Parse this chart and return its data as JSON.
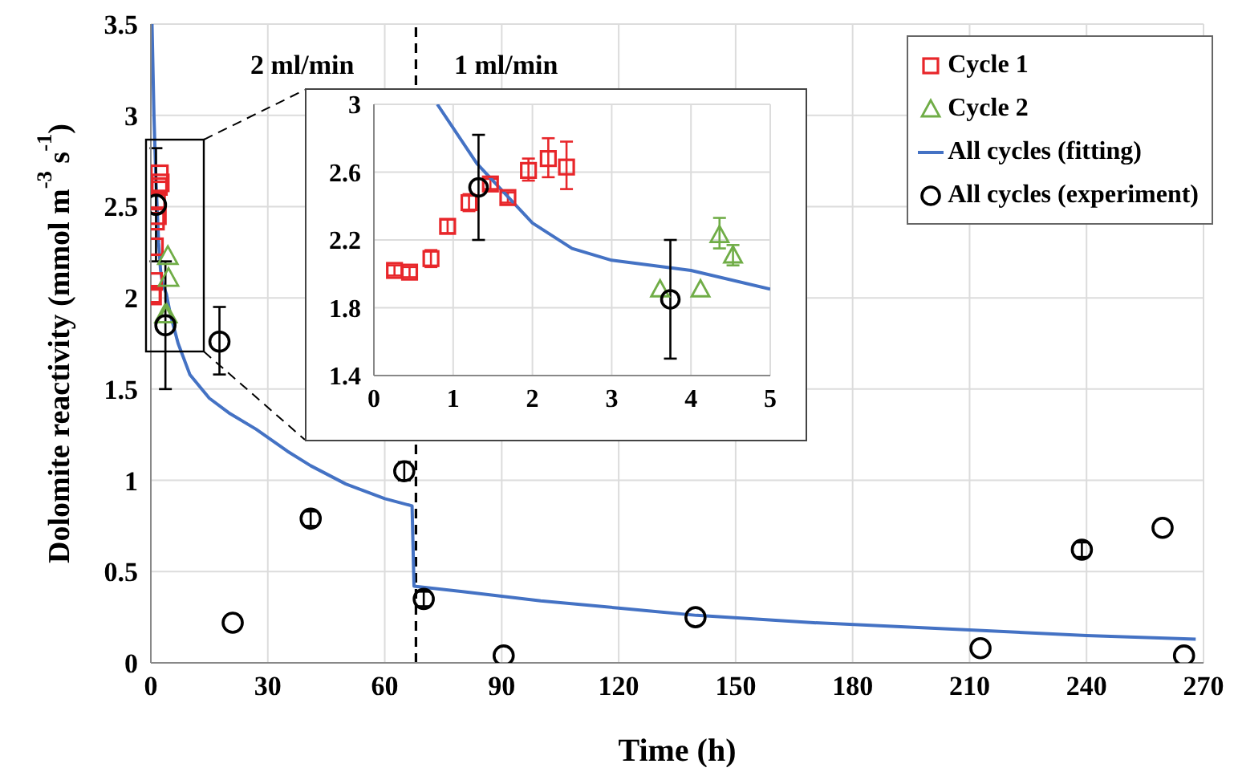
{
  "chart_data": [
    {
      "type": "scatter",
      "xlabel": "Time (h)",
      "ylabel": "Dolomite reactivity (mmol m$^{-3}$ s$^{-1}$)",
      "xlim": [
        0,
        270
      ],
      "ylim": [
        0,
        3.5
      ],
      "xticks": [
        0,
        30,
        60,
        90,
        120,
        150,
        180,
        210,
        240,
        270
      ],
      "yticks": [
        0,
        0.5,
        1,
        1.5,
        2,
        2.5,
        3,
        3.5
      ],
      "grid": true,
      "legend": "top right",
      "annotations": [
        "2 ml/min",
        "1 ml/min"
      ],
      "ref_lines": [
        {
          "axis": "x",
          "value": 68,
          "color": "#000000",
          "line_style": "dashed"
        }
      ],
      "series": [
        {
          "name": "Cycle 1",
          "marker": "square",
          "color": "#e8262a",
          "x": [
            0.26,
            0.45,
            0.72,
            0.93,
            1.2,
            1.47,
            1.69,
            1.95,
            2.2,
            2.43
          ],
          "values": [
            2.02,
            2.01,
            2.09,
            2.28,
            2.42,
            2.53,
            2.45,
            2.61,
            2.68,
            2.63
          ]
        },
        {
          "name": "Cycle 2",
          "marker": "triangle",
          "color": "#70ad47",
          "x": [
            3.61,
            4.12,
            4.36,
            4.53
          ],
          "values": [
            1.91,
            1.91,
            2.23,
            2.11
          ]
        },
        {
          "name": "All cycles (fitting)",
          "type": "line",
          "marker": "none",
          "line_style": "solid",
          "color": "#4472c4",
          "x": [
            0.3,
            0.8,
            1.3,
            1.7,
            2,
            2.5,
            3,
            4,
            5,
            7,
            10,
            15,
            20,
            27,
            35,
            41,
            50,
            60,
            67,
            67.5,
            80,
            100,
            120,
            140,
            170,
            210,
            240,
            268
          ],
          "values": [
            3.5,
            3.0,
            2.65,
            2.45,
            2.3,
            2.15,
            2.08,
            2.02,
            1.91,
            1.75,
            1.58,
            1.45,
            1.37,
            1.28,
            1.16,
            1.08,
            0.98,
            0.9,
            0.86,
            0.42,
            0.39,
            0.34,
            0.3,
            0.26,
            0.22,
            0.18,
            0.15,
            0.13
          ]
        },
        {
          "name": "All cycles (experiment)",
          "marker": "circle",
          "color": "#000000",
          "x": [
            1.32,
            3.74,
            17.6,
            21,
            41,
            65,
            70,
            90.5,
            139.7,
            212.8,
            238.8,
            259.5,
            265
          ],
          "values": [
            2.51,
            1.85,
            1.76,
            0.22,
            0.79,
            1.05,
            0.35,
            0.04,
            0.25,
            0.08,
            0.62,
            0.74,
            0.04
          ],
          "errors": [
            [
              2.2,
              2.82
            ],
            [
              1.5,
              2.2
            ],
            [
              1.58,
              1.95
            ],
            null,
            0.04,
            0.05,
            0.04,
            null,
            null,
            null,
            0.04,
            null,
            null
          ]
        }
      ]
    },
    {
      "type": "scatter",
      "xlim": [
        0,
        5
      ],
      "ylim": [
        1.4,
        3
      ],
      "xticks": [
        0,
        1,
        2,
        3,
        4,
        5
      ],
      "yticks": [
        1.4,
        1.8,
        2.2,
        2.6,
        3
      ],
      "grid": true,
      "series": [
        {
          "marker": "square",
          "color": "#e8262a",
          "x": [
            0.26,
            0.45,
            0.72,
            0.93,
            1.2,
            1.47,
            1.69,
            1.95,
            2.2,
            2.43
          ],
          "values": [
            2.02,
            2.01,
            2.09,
            2.28,
            2.42,
            2.53,
            2.45,
            2.61,
            2.68,
            2.63
          ],
          "errors": [
            0.03,
            0.03,
            0.05,
            0.04,
            0.05,
            0.03,
            0.03,
            [
              2.55,
              2.68
            ],
            [
              2.57,
              2.8
            ],
            [
              2.5,
              2.78
            ]
          ]
        },
        {
          "marker": "triangle",
          "color": "#70ad47",
          "x": [
            3.61,
            4.12,
            4.36,
            4.53
          ],
          "values": [
            1.91,
            1.91,
            2.23,
            2.11
          ],
          "errors": [
            null,
            null,
            [
              2.15,
              2.33
            ],
            0.06
          ]
        },
        {
          "type": "line",
          "marker": "none",
          "line_style": "solid",
          "color": "#4472c4",
          "x": [
            0.8,
            1.3,
            1.7,
            2,
            2.5,
            3,
            4,
            5
          ],
          "values": [
            3.0,
            2.65,
            2.45,
            2.3,
            2.15,
            2.08,
            2.02,
            1.91
          ]
        },
        {
          "marker": "circle",
          "color": "#000000",
          "x": [
            1.32,
            3.74
          ],
          "values": [
            2.51,
            1.85
          ],
          "errors": [
            [
              2.2,
              2.82
            ],
            [
              1.5,
              2.2
            ]
          ]
        }
      ]
    }
  ]
}
